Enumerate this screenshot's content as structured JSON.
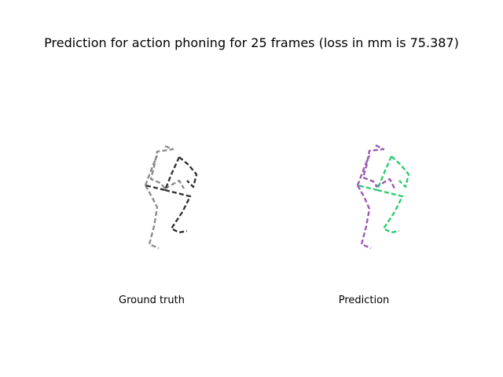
{
  "title": "Prediction for action phoning for 25 frames (loss in mm is 75.387)",
  "panels": {
    "ground_truth": {
      "label": "Ground truth",
      "colors": {
        "left": "#8c8c8c",
        "right": "#333333"
      }
    },
    "prediction": {
      "label": "Prediction",
      "colors": {
        "left": "#9b59b6",
        "right": "#2ecc71"
      }
    }
  }
}
